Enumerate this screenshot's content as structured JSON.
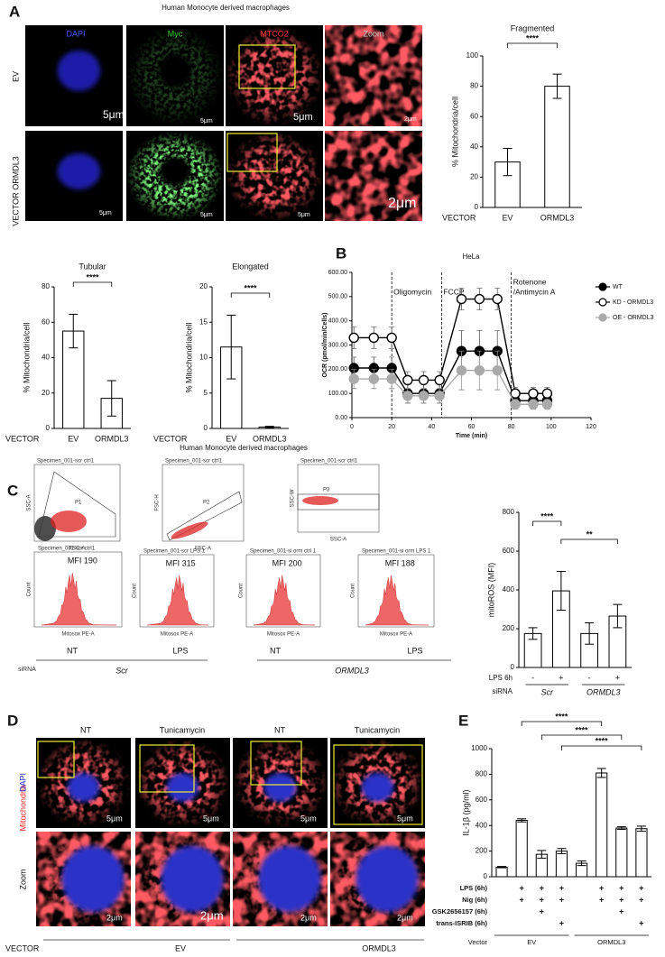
{
  "panel_letters": [
    "A",
    "B",
    "C",
    "D",
    "E"
  ],
  "panel_a": {
    "title": "Human Monocyte derived macrophages",
    "columns": [
      "DAPI",
      "Myc",
      "MTCO2",
      "Zoom"
    ],
    "rows": [
      "EV",
      "ORMDL3"
    ],
    "row_group": "VECTOR",
    "scale_bars": [
      "5μm",
      "5μm",
      "5μm",
      "2μm",
      "5μm",
      "5μm",
      "5μm",
      "2μm"
    ]
  },
  "panel_c": {
    "title": "Human Monocyte derived macrophages",
    "scatter_plots": [
      {
        "title": "Specimen_001-scr ctrl1",
        "gate": "P1",
        "x_label": "FSC-A",
        "y_label": "SSC-A"
      },
      {
        "title": "Specimen_001-scr ctrl1",
        "gate": "P2",
        "x_label": "FSC-A",
        "y_label": "FSC-H"
      },
      {
        "title": "Specimen_001-scr ctrl1",
        "gate": "P3",
        "x_label": "SSC-A",
        "y_label": "SSC-W"
      }
    ],
    "histograms": [
      {
        "title": "Specimen_001-scr ctrl1",
        "mfi": "MFI 190",
        "x_label": "Mitosox PE-A",
        "y_label": "Count"
      },
      {
        "title": "Specimen_001-scr LPS 1",
        "mfi": "MFI 315",
        "x_label": "Mitosox PE-A",
        "y_label": "Count"
      },
      {
        "title": "Specimen_001-si orm ctrl 1",
        "mfi": "MFI 200",
        "x_label": "Mitosox PE-A",
        "y_label": "Count"
      },
      {
        "title": "Specimen_001-si orm LPS 1",
        "mfi": "MFI 188",
        "x_label": "Mitosox PE-A",
        "y_label": "Count"
      }
    ],
    "conditions": [
      "NT",
      "LPS",
      "NT",
      "LPS"
    ],
    "sirna_label": "siRNA",
    "sirna_groups": [
      "Scr",
      "ORMDL3"
    ]
  },
  "panel_d": {
    "columns": [
      "NT",
      "Tunicamycin",
      "NT",
      "Tunicamycin"
    ],
    "stain_labels": [
      "Mitochondria",
      ":",
      "DAPI"
    ],
    "zoom_label": "Zoom",
    "scale_bars": [
      "5μm",
      "5μm",
      "5μm",
      "5μm",
      "2μm",
      "2μm",
      "2μm",
      "2μm"
    ],
    "vector_label": "VECTOR",
    "groups": [
      "EV",
      "ORMDL3"
    ]
  },
  "chart_data": [
    {
      "type": "bar",
      "title": "Fragmented",
      "y_label": "% Mitochondria/cell",
      "x_prefix": "VECTOR",
      "categories": [
        "EV",
        "ORMDL3"
      ],
      "values": [
        30,
        80
      ],
      "errors": [
        9,
        8
      ],
      "color": "#ffffff",
      "ylim": [
        0,
        100
      ],
      "yticks": [
        0,
        20,
        40,
        60,
        80,
        100
      ],
      "significance": [
        "****"
      ]
    },
    {
      "type": "bar",
      "title": "Tubular",
      "y_label": "% Mitochondria/cell",
      "x_prefix": "VECTOR",
      "categories": [
        "EV",
        "ORMDL3"
      ],
      "values": [
        55,
        17
      ],
      "errors": [
        9.5,
        10
      ],
      "color": "#ffffff",
      "ylim": [
        0,
        80
      ],
      "yticks": [
        0,
        20,
        40,
        60,
        80
      ],
      "significance": [
        "****"
      ]
    },
    {
      "type": "bar",
      "title": "Elongated",
      "y_label": "% Mitochondria/cell",
      "x_prefix": "VECTOR",
      "categories": [
        "EV",
        "ORMDL3"
      ],
      "values": [
        11.5,
        0.2
      ],
      "errors": [
        4.5,
        0.1
      ],
      "color": "#ffffff",
      "ylim": [
        0,
        20
      ],
      "yticks": [
        0,
        5,
        10,
        15,
        20
      ],
      "significance": [
        "****"
      ]
    },
    {
      "type": "line",
      "title": "HeLa",
      "x_label": "Time (min)",
      "y_label": "OCR (pmol/min/Cells)",
      "x": [
        1,
        11,
        20,
        28,
        36,
        44,
        55,
        64,
        73,
        82,
        91,
        98
      ],
      "series": [
        {
          "name": "WT",
          "color": "#000000",
          "values": [
            205,
            205,
            205,
            100,
            100,
            100,
            275,
            275,
            275,
            70,
            70,
            70
          ],
          "errors": [
            45,
            45,
            45,
            40,
            40,
            40,
            85,
            85,
            85,
            25,
            25,
            25
          ]
        },
        {
          "name": "KD  - ORMDL3",
          "color": "#ffffff",
          "values": [
            330,
            330,
            330,
            155,
            155,
            155,
            490,
            490,
            490,
            100,
            100,
            100
          ],
          "errors": [
            45,
            45,
            45,
            35,
            35,
            35,
            45,
            45,
            45,
            25,
            25,
            25
          ]
        },
        {
          "name": "OE  - ORMDL3",
          "color": "#aaaaaa",
          "values": [
            160,
            160,
            160,
            90,
            90,
            90,
            195,
            195,
            195,
            55,
            55,
            55
          ],
          "errors": [
            40,
            40,
            40,
            30,
            30,
            30,
            80,
            80,
            80,
            20,
            20,
            20
          ]
        }
      ],
      "xlim": [
        0,
        120
      ],
      "xticks": [
        0,
        20,
        40,
        60,
        80,
        100,
        120
      ],
      "ylim": [
        0,
        600
      ],
      "yticks": [
        {
          "value": 0,
          "label": "0.00"
        },
        {
          "value": 100,
          "label": "100.00"
        },
        {
          "value": 200,
          "label": "200.00"
        },
        {
          "value": 300,
          "label": "300.00"
        },
        {
          "value": 400,
          "label": "400.00"
        },
        {
          "value": 500,
          "label": "500.00"
        },
        {
          "value": 600,
          "label": "600.00"
        }
      ],
      "annotations": [
        {
          "lines": [
            "Oligomycin"
          ],
          "x": 20
        },
        {
          "lines": [
            "FCCP"
          ],
          "x": 45
        },
        {
          "lines": [
            "Rotenone",
            "/Antimycin A"
          ],
          "x": 80
        }
      ]
    },
    {
      "type": "bar",
      "y_label": "mitoROS (MFI)",
      "categories": [
        "-",
        "+",
        "-",
        "+"
      ],
      "x_row_label": "LPS 6h",
      "sirna_label": "siRNA",
      "groups": [
        "Scr",
        "ORMDL3"
      ],
      "values": [
        175,
        395,
        175,
        265
      ],
      "errors": [
        30,
        100,
        55,
        60
      ],
      "color": "#ffffff",
      "ylim": [
        0,
        800
      ],
      "yticks": [
        0,
        200,
        400,
        600,
        800
      ],
      "significance": [
        "****",
        "**"
      ]
    },
    {
      "type": "bar",
      "y_label": "IL-1β (pg/ml)",
      "values": [
        75,
        440,
        175,
        200,
        105,
        810,
        380,
        375
      ],
      "errors": [
        5,
        12,
        30,
        20,
        18,
        35,
        10,
        20
      ],
      "color": "#ffffff",
      "ylim": [
        0,
        1000
      ],
      "yticks": [
        0,
        200,
        400,
        600,
        800,
        1000
      ],
      "significance": [
        "****",
        "****",
        "****"
      ],
      "rows": [
        {
          "label": "LPS (6h)",
          "signs": [
            null,
            "+",
            "+",
            "+",
            null,
            "+",
            "+",
            "+"
          ]
        },
        {
          "label": "Nig  (6h)",
          "signs": [
            null,
            "+",
            "+",
            "+",
            null,
            "+",
            "+",
            "+"
          ]
        },
        {
          "label": "GSK2656157 (6h)",
          "signs": [
            null,
            null,
            "+",
            null,
            null,
            null,
            "+",
            null
          ]
        },
        {
          "label": "trans-ISRIB (6h)",
          "signs": [
            null,
            null,
            null,
            "+",
            null,
            null,
            null,
            "+"
          ]
        }
      ],
      "vector_label": "Vector",
      "groups": [
        "EV",
        "ORMDL3"
      ]
    }
  ]
}
